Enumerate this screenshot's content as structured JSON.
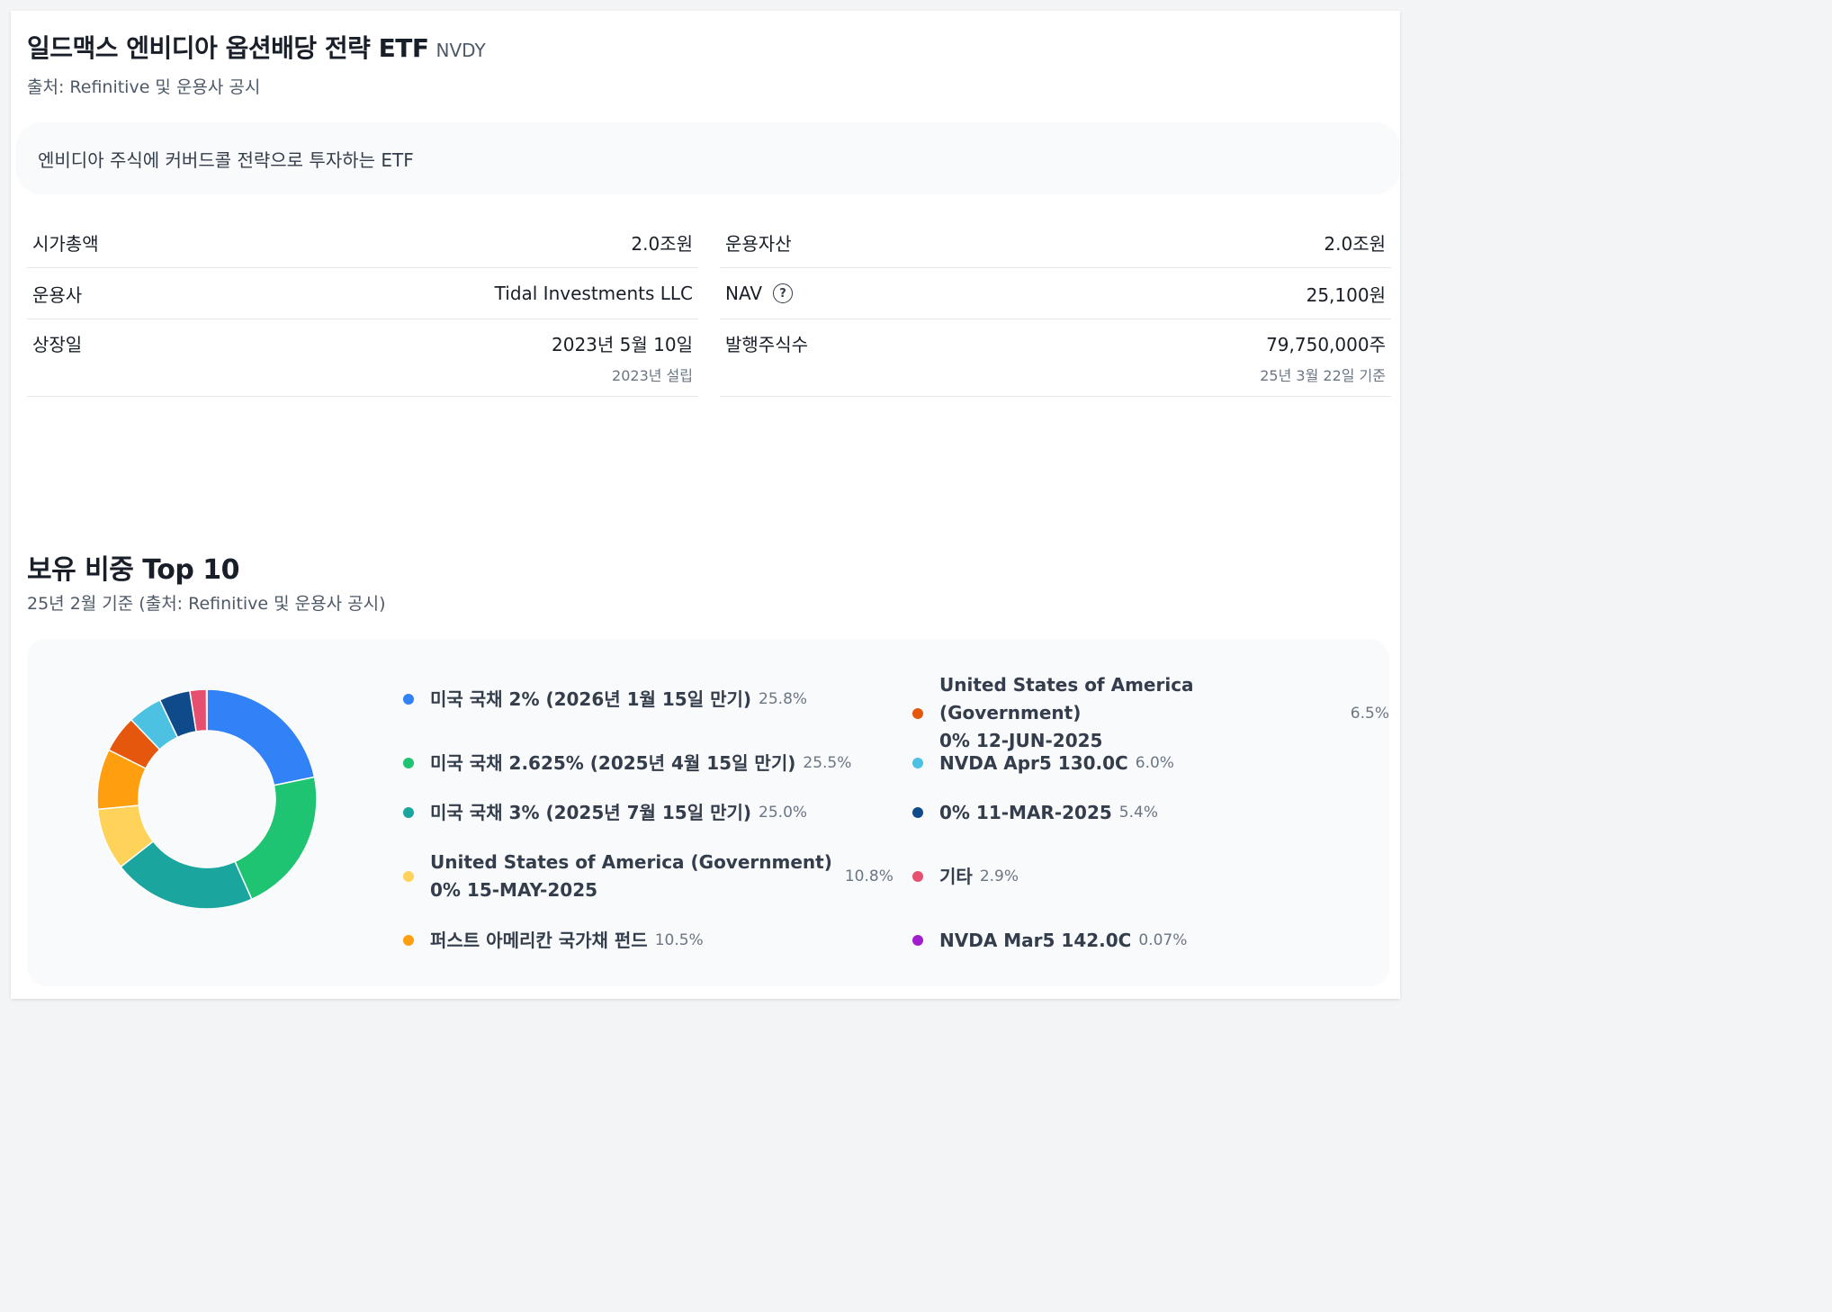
{
  "header": {
    "title": "일드맥스 엔비디아 옵션배당 전략 ETF",
    "ticker": "NVDY",
    "source": "출처: Refinitive 및 운용사 공시"
  },
  "description": "엔비디아 주식에 커버드콜 전략으로 투자하는 ETF",
  "info": {
    "market_cap": {
      "label": "시가총액",
      "value": "2.0조원"
    },
    "aum": {
      "label": "운용자산",
      "value": "2.0조원"
    },
    "manager": {
      "label": "운용사",
      "value": "Tidal Investments LLC"
    },
    "nav": {
      "label": "NAV",
      "help": "?",
      "value": "25,100원"
    },
    "listing": {
      "label": "상장일",
      "value": "2023년 5월 10일",
      "sub": "2023년 설립"
    },
    "shares": {
      "label": "발행주식수",
      "value": "79,750,000주",
      "sub": "25년 3월 22일 기준"
    }
  },
  "holdings": {
    "title": "보유 비중 Top 10",
    "subtitle": "25년 2월 기준 (출처: Refinitive 및 운용사 공시)",
    "items": [
      {
        "name_lines": [
          "미국 국채 2% (2026년 1월 15일 만기)"
        ],
        "pct": "25.8%",
        "color": "#3182f6"
      },
      {
        "name_lines": [
          "미국 국채 2.625% (2025년 4월 15일 만기)"
        ],
        "pct": "25.5%",
        "color": "#1ec472"
      },
      {
        "name_lines": [
          "미국 국채 3% (2025년 7월 15일 만기)"
        ],
        "pct": "25.0%",
        "color": "#1aa59f"
      },
      {
        "name_lines": [
          "United States of America (Government)",
          "0% 15-MAY-2025"
        ],
        "pct": "10.8%",
        "color": "#ffd25a"
      },
      {
        "name_lines": [
          "퍼스트 아메리칸 국가채 펀드"
        ],
        "pct": "10.5%",
        "color": "#ff9f0f"
      },
      {
        "name_lines": [
          "United States of America (Government)",
          "0% 12-JUN-2025"
        ],
        "pct": "6.5%",
        "color": "#e4570c"
      },
      {
        "name_lines": [
          "NVDA Apr5 130.0C"
        ],
        "pct": "6.0%",
        "color": "#4cc1e2"
      },
      {
        "name_lines": [
          "0% 11-MAR-2025"
        ],
        "pct": "5.4%",
        "color": "#0f4a8a"
      },
      {
        "name_lines": [
          "기타"
        ],
        "pct": "2.9%",
        "color": "#e6506e"
      },
      {
        "name_lines": [
          "NVDA Mar5 142.0C"
        ],
        "pct": "0.07%",
        "color": "#a01ecd"
      }
    ]
  },
  "chart_data": {
    "type": "pie",
    "categories": [
      "미국 국채 2% (2026년 1월 15일 만기)",
      "미국 국채 2.625% (2025년 4월 15일 만기)",
      "미국 국채 3% (2025년 7월 15일 만기)",
      "United States of America (Government) 0% 15-MAY-2025",
      "퍼스트 아메리칸 국가채 펀드",
      "United States of America (Government) 0% 12-JUN-2025",
      "NVDA Apr5 130.0C",
      "0% 11-MAR-2025",
      "기타",
      "NVDA Mar5 142.0C"
    ],
    "values": [
      25.8,
      25.5,
      25.0,
      10.8,
      10.5,
      6.5,
      6.0,
      5.4,
      2.9,
      0.07
    ],
    "colors": [
      "#3182f6",
      "#1ec472",
      "#1aa59f",
      "#ffd25a",
      "#ff9f0f",
      "#e4570c",
      "#4cc1e2",
      "#0f4a8a",
      "#e6506e",
      "#a01ecd"
    ],
    "style": "donut"
  }
}
